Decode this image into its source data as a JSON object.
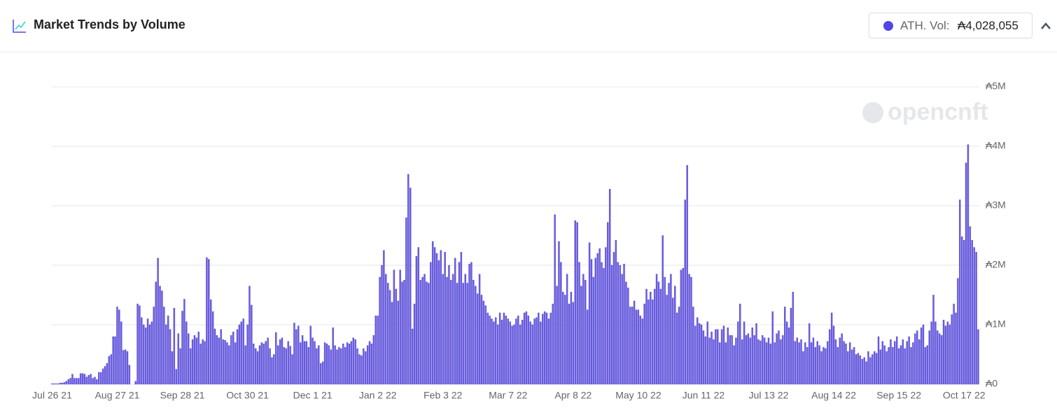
{
  "header": {
    "title": "Market Trends by Volume",
    "stat_label": "ATH. Vol:",
    "stat_value": "₳4,028,055"
  },
  "chart_data": {
    "type": "bar",
    "watermark": "opencnft",
    "color": "#6c5fe0",
    "grid": true,
    "ylim": [
      0,
      5000000
    ],
    "yticks": [
      {
        "value": 0,
        "label": "₳0"
      },
      {
        "value": 1000000,
        "label": "₳1M"
      },
      {
        "value": 2000000,
        "label": "₳2M"
      },
      {
        "value": 3000000,
        "label": "₳3M"
      },
      {
        "value": 4000000,
        "label": "₳4M"
      },
      {
        "value": 5000000,
        "label": "₳5M"
      }
    ],
    "categories": [
      "Jul 26 21",
      null,
      null,
      null,
      null,
      null,
      null,
      null,
      null,
      null,
      null,
      null,
      null,
      null,
      null,
      null,
      null,
      null,
      null,
      null,
      null,
      null,
      null,
      null,
      null,
      null,
      null,
      null,
      null,
      null,
      null,
      null,
      "Aug 27 21",
      null,
      null,
      null,
      null,
      null,
      null,
      null,
      null,
      null,
      null,
      null,
      null,
      null,
      null,
      null,
      null,
      null,
      null,
      null,
      null,
      null,
      null,
      null,
      null,
      null,
      null,
      null,
      null,
      null,
      null,
      null,
      "Sep 28 21",
      null,
      null,
      null,
      null,
      null,
      null,
      null,
      null,
      null,
      null,
      null,
      null,
      null,
      null,
      null,
      null,
      null,
      null,
      null,
      null,
      null,
      null,
      null,
      null,
      null,
      null,
      null,
      null,
      null,
      null,
      null,
      "Oct 30 21",
      null,
      null,
      null,
      null,
      null,
      null,
      null,
      null,
      null,
      null,
      null,
      null,
      null,
      null,
      null,
      null,
      null,
      null,
      null,
      null,
      null,
      null,
      null,
      null,
      null,
      null,
      null,
      null,
      null,
      null,
      null,
      "Dec 1 21",
      null,
      null,
      null,
      null,
      null,
      null,
      null,
      null,
      null,
      null,
      null,
      null,
      null,
      null,
      null,
      null,
      null,
      null,
      null,
      null,
      null,
      null,
      null,
      null,
      null,
      null,
      null,
      null,
      null,
      null,
      null,
      "Jan 2 22",
      null,
      null,
      null,
      null,
      null,
      null,
      null,
      null,
      null,
      null,
      null,
      null,
      null,
      null,
      null,
      null,
      null,
      null,
      null,
      null,
      null,
      null,
      null,
      null,
      null,
      null,
      null,
      null,
      null,
      null,
      null,
      "Feb 3 22",
      null,
      null,
      null,
      null,
      null,
      null,
      null,
      null,
      null,
      null,
      null,
      null,
      null,
      null,
      null,
      null,
      null,
      null,
      null,
      null,
      null,
      null,
      null,
      null,
      null,
      null,
      null,
      null,
      null,
      null,
      null,
      "Mar 7 22",
      null,
      null,
      null,
      null,
      null,
      null,
      null,
      null,
      null,
      null,
      null,
      null,
      null,
      null,
      null,
      null,
      null,
      null,
      null,
      null,
      null,
      null,
      null,
      null,
      null,
      null,
      null,
      null,
      null,
      null,
      null,
      "Apr 8 22",
      null,
      null,
      null,
      null,
      null,
      null,
      null,
      null,
      null,
      null,
      null,
      null,
      null,
      null,
      null,
      null,
      null,
      null,
      null,
      null,
      null,
      null,
      null,
      null,
      null,
      null,
      null,
      null,
      null,
      null,
      null,
      "May 10 22",
      null,
      null,
      null,
      null,
      null,
      null,
      null,
      null,
      null,
      null,
      null,
      null,
      null,
      null,
      null,
      null,
      null,
      null,
      null,
      null,
      null,
      null,
      null,
      null,
      null,
      null,
      null,
      null,
      null,
      null,
      null,
      "Jun 11 22",
      null,
      null,
      null,
      null,
      null,
      null,
      null,
      null,
      null,
      null,
      null,
      null,
      null,
      null,
      null,
      null,
      null,
      null,
      null,
      null,
      null,
      null,
      null,
      null,
      null,
      null,
      null,
      null,
      null,
      null,
      null,
      "Jul 13 22",
      null,
      null,
      null,
      null,
      null,
      null,
      null,
      null,
      null,
      null,
      null,
      null,
      null,
      null,
      null,
      null,
      null,
      null,
      null,
      null,
      null,
      null,
      null,
      null,
      null,
      null,
      null,
      null,
      null,
      null,
      null,
      "Aug 14 22",
      null,
      null,
      null,
      null,
      null,
      null,
      null,
      null,
      null,
      null,
      null,
      null,
      null,
      null,
      null,
      null,
      null,
      null,
      null,
      null,
      null,
      null,
      null,
      null,
      null,
      null,
      null,
      null,
      null,
      null,
      null,
      "Sep 15 22",
      null,
      null,
      null,
      null,
      null,
      null,
      null,
      null,
      null,
      null,
      null,
      null,
      null,
      null,
      null,
      null,
      null,
      null,
      null,
      null,
      null,
      null,
      null,
      null,
      null,
      null,
      null,
      null,
      null,
      null,
      null,
      "Oct 17 22",
      null,
      null,
      null,
      null,
      null,
      null,
      null
    ],
    "values": [
      10000,
      10000,
      10000,
      10000,
      20000,
      20000,
      30000,
      50000,
      80000,
      100000,
      170000,
      100000,
      100000,
      100000,
      180000,
      180000,
      170000,
      120000,
      150000,
      170000,
      100000,
      120000,
      80000,
      200000,
      200000,
      260000,
      300000,
      350000,
      470000,
      500000,
      800000,
      800000,
      1300000,
      1250000,
      1050000,
      570000,
      580000,
      550000,
      320000,
      0,
      0,
      50000,
      1350000,
      1320000,
      1120000,
      1000000,
      950000,
      1100000,
      1000000,
      1050000,
      1300000,
      1720000,
      2120000,
      1650000,
      1570000,
      1300000,
      1000000,
      1150000,
      920000,
      550000,
      1280000,
      250000,
      850000,
      600000,
      1230000,
      1430000,
      1050000,
      850000,
      600000,
      750000,
      820000,
      780000,
      880000,
      680000,
      750000,
      720000,
      2130000,
      2100000,
      1420000,
      1220000,
      930000,
      820000,
      780000,
      920000,
      750000,
      740000,
      700000,
      650000,
      820000,
      880000,
      700000,
      920000,
      1000000,
      1050000,
      1100000,
      650000,
      1000000,
      1650000,
      1330000,
      680000,
      600000,
      550000,
      650000,
      700000,
      680000,
      720000,
      780000,
      600000,
      450000,
      500000,
      870000,
      650000,
      750000,
      780000,
      620000,
      600000,
      720000,
      640000,
      500000,
      1030000,
      920000,
      980000,
      700000,
      820000,
      720000,
      720000,
      620000,
      980000,
      780000,
      720000,
      600000,
      650000,
      350000,
      380000,
      700000,
      680000,
      650000,
      580000,
      950000,
      650000,
      580000,
      620000,
      600000,
      680000,
      620000,
      700000,
      680000,
      720000,
      780000,
      750000,
      600000,
      500000,
      480000,
      600000,
      550000,
      650000,
      720000,
      680000,
      820000,
      1150000,
      1150000,
      1800000,
      2000000,
      2250000,
      1850000,
      1700000,
      1580000,
      1380000,
      1920000,
      1600000,
      1400000,
      1920000,
      1720000,
      1750000,
      2800000,
      3530000,
      3300000,
      930000,
      1350000,
      2150000,
      2300000,
      1750000,
      1800000,
      1850000,
      1720000,
      1700000,
      2050000,
      2400000,
      2300000,
      2200000,
      2080000,
      2250000,
      1850000,
      2220000,
      1800000,
      2000000,
      1750000,
      1850000,
      2120000,
      1700000,
      2050000,
      2220000,
      1700000,
      1850000,
      1700000,
      2020000,
      2050000,
      1750000,
      1650000,
      1520000,
      1850000,
      1500000,
      1400000,
      1320000,
      1200000,
      1150000,
      1100000,
      1050000,
      1120000,
      1000000,
      1200000,
      1080000,
      1200000,
      1150000,
      1100000,
      1050000,
      980000,
      1000000,
      1100000,
      1150000,
      1000000,
      1080000,
      1200000,
      1220000,
      1150000,
      1050000,
      1000000,
      1100000,
      1120000,
      1200000,
      1050000,
      1180000,
      1220000,
      1200000,
      1100000,
      1200000,
      1350000,
      2850000,
      1650000,
      2400000,
      2050000,
      1550000,
      1500000,
      1850000,
      1350000,
      1550000,
      1380000,
      2750000,
      2720000,
      2050000,
      1650000,
      1850000,
      1750000,
      1250000,
      2380000,
      2100000,
      1800000,
      2120000,
      2200000,
      2280000,
      2050000,
      1950000,
      2300000,
      2720000,
      3280000,
      2000000,
      2220000,
      2420000,
      2050000,
      2000000,
      1850000,
      2020000,
      1720000,
      1620000,
      1300000,
      1300000,
      1400000,
      1250000,
      1250000,
      1150000,
      1100000,
      1350000,
      1600000,
      1420000,
      1550000,
      1420000,
      1600000,
      1850000,
      1720000,
      1600000,
      2500000,
      1800000,
      1500000,
      1700000,
      1850000,
      1450000,
      1650000,
      1200000,
      1300000,
      1920000,
      1950000,
      3100000,
      3680000,
      1850000,
      1800000,
      1300000,
      980000,
      1120000,
      1020000,
      1000000,
      900000,
      800000,
      1050000,
      780000,
      880000,
      750000,
      920000,
      920000,
      700000,
      920000,
      980000,
      700000,
      950000,
      820000,
      820000,
      650000,
      780000,
      1050000,
      1350000,
      750000,
      1050000,
      820000,
      850000,
      780000,
      950000,
      820000,
      1020000,
      750000,
      730000,
      820000,
      780000,
      700000,
      780000,
      680000,
      1220000,
      700000,
      850000,
      900000,
      750000,
      820000,
      1300000,
      1050000,
      950000,
      1280000,
      1550000,
      720000,
      780000,
      700000,
      750000,
      550000,
      700000,
      620000,
      1020000,
      700000,
      780000,
      620000,
      720000,
      650000,
      550000,
      620000,
      600000,
      720000,
      920000,
      1200000,
      980000,
      750000,
      620000,
      780000,
      850000,
      720000,
      680000,
      550000,
      700000,
      580000,
      620000,
      500000,
      520000,
      480000,
      420000,
      450000,
      380000,
      550000,
      450000,
      500000,
      550000,
      520000,
      800000,
      580000,
      720000,
      650000,
      550000,
      620000,
      750000,
      620000,
      720000,
      800000,
      600000,
      650000,
      750000,
      600000,
      720000,
      800000,
      620000,
      700000,
      850000,
      900000,
      750000,
      950000,
      1000000,
      620000,
      650000,
      900000,
      1050000,
      1500000,
      1050000,
      900000,
      850000,
      820000,
      1080000,
      980000,
      1050000,
      1000000,
      1170000,
      1350000,
      1200000,
      1780000,
      3100000,
      2480000,
      2420000,
      3720000,
      4028055,
      2650000,
      2420000,
      2300000,
      2220000,
      920000
    ]
  }
}
